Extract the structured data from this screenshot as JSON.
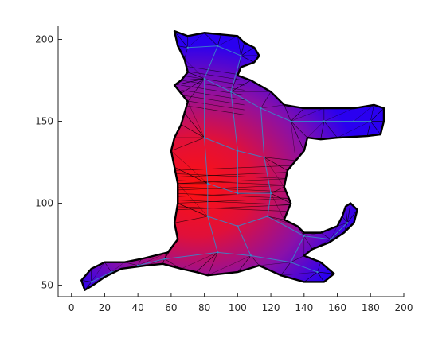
{
  "chart_data": {
    "type": "mesh-plot",
    "title": "",
    "xlabel": "",
    "ylabel": "",
    "xlim": [
      -8,
      200
    ],
    "ylim": [
      43,
      208
    ],
    "x_ticks": [
      0,
      20,
      40,
      60,
      80,
      100,
      120,
      140,
      160,
      180,
      200
    ],
    "y_ticks": [
      50,
      100,
      150,
      200
    ],
    "grid": false,
    "legend": "none",
    "colormap": [
      "#1f00ff",
      "#ff0a18"
    ],
    "mesh_edge_color": "#000000",
    "dual_graph_color": "#3a86c8",
    "outline": [
      [
        62,
        205
      ],
      [
        70,
        202
      ],
      [
        80,
        204
      ],
      [
        90,
        203
      ],
      [
        100,
        202
      ],
      [
        104,
        198
      ],
      [
        110,
        195
      ],
      [
        113,
        190
      ],
      [
        110,
        186
      ],
      [
        102,
        183
      ],
      [
        100,
        178
      ],
      [
        108,
        175
      ],
      [
        120,
        168
      ],
      [
        128,
        160
      ],
      [
        140,
        158
      ],
      [
        152,
        158
      ],
      [
        170,
        158
      ],
      [
        182,
        160
      ],
      [
        188,
        158
      ],
      [
        188,
        150
      ],
      [
        186,
        142
      ],
      [
        178,
        141
      ],
      [
        160,
        140
      ],
      [
        150,
        139
      ],
      [
        142,
        140
      ],
      [
        140,
        132
      ],
      [
        135,
        126
      ],
      [
        130,
        120
      ],
      [
        128,
        110
      ],
      [
        132,
        100
      ],
      [
        128,
        90
      ],
      [
        136,
        86
      ],
      [
        140,
        82
      ],
      [
        150,
        82
      ],
      [
        160,
        86
      ],
      [
        163,
        92
      ],
      [
        165,
        98
      ],
      [
        168,
        100
      ],
      [
        172,
        96
      ],
      [
        170,
        88
      ],
      [
        164,
        82
      ],
      [
        155,
        76
      ],
      [
        145,
        72
      ],
      [
        140,
        68
      ],
      [
        150,
        64
      ],
      [
        158,
        57
      ],
      [
        152,
        52
      ],
      [
        140,
        52
      ],
      [
        126,
        56
      ],
      [
        113,
        62
      ],
      [
        100,
        58
      ],
      [
        82,
        56
      ],
      [
        75,
        58
      ],
      [
        66,
        60
      ],
      [
        55,
        63
      ],
      [
        45,
        62
      ],
      [
        30,
        60
      ],
      [
        20,
        55
      ],
      [
        13,
        50
      ],
      [
        8,
        47
      ],
      [
        6,
        53
      ],
      [
        12,
        60
      ],
      [
        20,
        64
      ],
      [
        32,
        64
      ],
      [
        42,
        66
      ],
      [
        58,
        70
      ],
      [
        64,
        78
      ],
      [
        62,
        88
      ],
      [
        64,
        100
      ],
      [
        64,
        112
      ],
      [
        62,
        122
      ],
      [
        60,
        132
      ],
      [
        62,
        140
      ],
      [
        66,
        148
      ],
      [
        68,
        155
      ],
      [
        70,
        162
      ],
      [
        66,
        167
      ],
      [
        62,
        172
      ],
      [
        66,
        175
      ],
      [
        70,
        180
      ],
      [
        68,
        188
      ],
      [
        64,
        196
      ]
    ],
    "series": [
      {
        "centroids": [
          [
            70,
            195
          ],
          [
            88,
            196
          ],
          [
            102,
            190
          ],
          [
            80,
            176
          ],
          [
            96,
            168
          ],
          [
            114,
            158
          ],
          [
            132,
            150
          ],
          [
            152,
            150
          ],
          [
            170,
            150
          ],
          [
            180,
            150
          ],
          [
            80,
            140
          ],
          [
            100,
            132
          ],
          [
            116,
            128
          ],
          [
            82,
            112
          ],
          [
            100,
            106
          ],
          [
            120,
            106
          ],
          [
            82,
            92
          ],
          [
            100,
            86
          ],
          [
            118,
            92
          ],
          [
            88,
            70
          ],
          [
            108,
            68
          ],
          [
            132,
            64
          ],
          [
            148,
            58
          ],
          [
            140,
            80
          ],
          [
            156,
            78
          ],
          [
            166,
            88
          ],
          [
            56,
            66
          ],
          [
            40,
            62
          ],
          [
            24,
            58
          ],
          [
            12,
            52
          ]
        ]
      }
    ]
  }
}
